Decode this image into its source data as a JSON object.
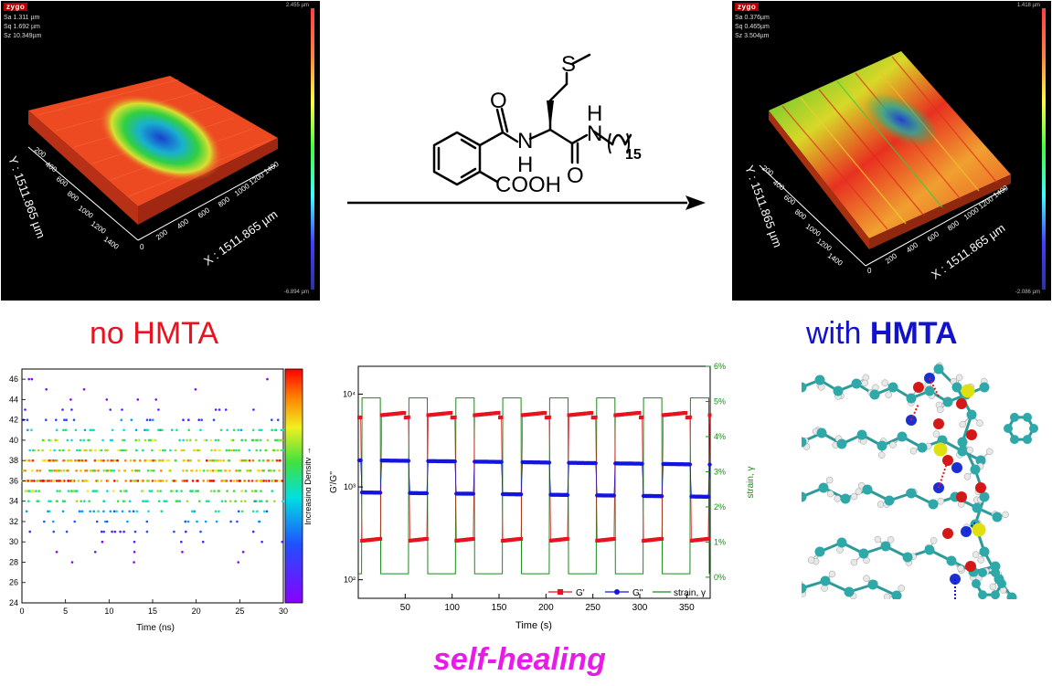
{
  "left_panel": {
    "logo": "zygo",
    "stats": [
      "Sa 1.311 µm",
      "Sq 1.692 µm",
      "Sz 10.349µm"
    ],
    "scale_top": "2.455 µm",
    "scale_bottom": "-6.894 µm",
    "x_axis_label": "X : 1511.865 µm",
    "y_axis_label": "Y : 1511.865 µm",
    "x_ticks": [
      "0",
      "200",
      "400",
      "600",
      "800",
      "1000",
      "1200",
      "1400"
    ],
    "y_ticks": [
      "1400",
      "1200",
      "1000",
      "800",
      "600",
      "400",
      "200"
    ]
  },
  "right_panel": {
    "logo": "zygo",
    "stats": [
      "Sa 0.376µm",
      "Sq 0.465µm",
      "Sz 3.504µm"
    ],
    "scale_top": "1.418 µm",
    "scale_bottom": "-2.086 µm",
    "x_axis_label": "X : 1511.865 µm",
    "y_axis_label": "Y : 1511.865 µm",
    "x_ticks": [
      "0",
      "200",
      "400",
      "600",
      "800",
      "1000",
      "1200",
      "1400"
    ],
    "y_ticks": [
      "1400",
      "1200",
      "1000",
      "800",
      "600",
      "400",
      "200"
    ]
  },
  "structure": {
    "atom_s": "S",
    "atom_o1": "O",
    "atom_o2": "O",
    "atom_n1": "N",
    "atom_h1": "H",
    "atom_n2": "N",
    "atom_h2": "H",
    "chain_sub": "15",
    "cooh": "COOH"
  },
  "labels": {
    "no_hmta": "no HMTA",
    "with_prefix": "with ",
    "with_bold": "HMTA",
    "self_healing": "self-healing"
  },
  "colors": {
    "no_hmta": "#e8131e",
    "with_hmta": "#1212cc",
    "self_healing": "#e81ce8",
    "g_prime": "#e8131e",
    "g_double": "#1515e0",
    "strain": "#1a8a1a"
  },
  "chart_data": [
    {
      "type": "scatter",
      "xlabel": "Time (ns)",
      "ylabel": "",
      "xlim": [
        0,
        30
      ],
      "ylim": [
        24,
        47
      ],
      "x_ticks": [
        0,
        5,
        10,
        15,
        20,
        25,
        30
      ],
      "y_ticks": [
        24,
        26,
        28,
        30,
        32,
        34,
        36,
        38,
        40,
        42,
        44,
        46
      ],
      "colorbar_label": "Increasing Density →",
      "grid": false,
      "series_levels": [
        {
          "y": 28,
          "density": 0.05
        },
        {
          "y": 29,
          "density": 0.08
        },
        {
          "y": 30,
          "density": 0.1
        },
        {
          "y": 31,
          "density": 0.15
        },
        {
          "y": 32,
          "density": 0.25
        },
        {
          "y": 33,
          "density": 0.35
        },
        {
          "y": 34,
          "density": 0.5
        },
        {
          "y": 35,
          "density": 0.55
        },
        {
          "y": 36,
          "density": 0.9
        },
        {
          "y": 37,
          "density": 0.7
        },
        {
          "y": 38,
          "density": 0.8
        },
        {
          "y": 39,
          "density": 0.6
        },
        {
          "y": 40,
          "density": 0.55
        },
        {
          "y": 41,
          "density": 0.4
        },
        {
          "y": 42,
          "density": 0.22
        },
        {
          "y": 43,
          "density": 0.12
        },
        {
          "y": 44,
          "density": 0.05
        },
        {
          "y": 45,
          "density": 0.03
        },
        {
          "y": 46,
          "density": 0.02
        }
      ]
    },
    {
      "type": "line",
      "xlabel": "Time (s)",
      "ylabel": "G'/G''",
      "y2label": "strain, γ",
      "xlim": [
        0,
        375
      ],
      "ylim_log": [
        1.8,
        4.3
      ],
      "y2lim": [
        -0.6,
        6
      ],
      "x_ticks": [
        50,
        100,
        150,
        200,
        250,
        300,
        350
      ],
      "y_ticks": [
        {
          "exp": 2,
          "label": "10²"
        },
        {
          "exp": 3,
          "label": "10³"
        },
        {
          "exp": 4,
          "label": "10⁴"
        }
      ],
      "y2_ticks": [
        "0%",
        "1%",
        "2%",
        "3%",
        "4%",
        "5%",
        "6%"
      ],
      "legend": "bottom-right",
      "cycle_period": 50,
      "high_strain_start": 4,
      "high_strain_end": 24,
      "series": [
        {
          "name": "G'",
          "low_strain": 6000,
          "high_strain": 280
        },
        {
          "name": "G''",
          "low_strain": 2000,
          "high_strain": 900
        },
        {
          "name": "strain, γ",
          "low_strain": 0.1,
          "high_strain": 5.1
        }
      ]
    }
  ]
}
